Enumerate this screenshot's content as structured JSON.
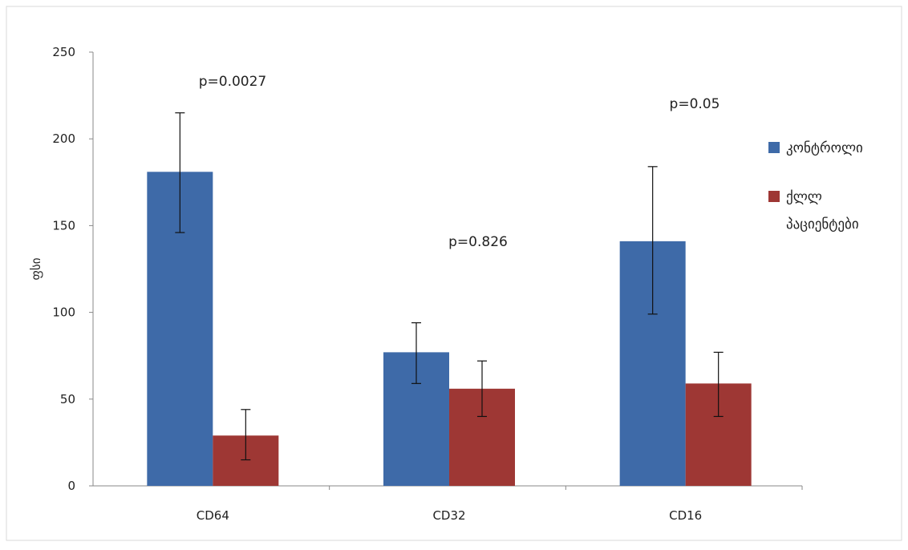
{
  "chart_data": {
    "type": "bar",
    "title": "",
    "xlabel": "",
    "ylabel": "ფსი",
    "ylim": [
      0,
      250
    ],
    "yticks": [
      0,
      50,
      100,
      150,
      200,
      250
    ],
    "grid": false,
    "legend_position": "right",
    "categories": [
      "CD64",
      "CD32",
      "CD16"
    ],
    "series": [
      {
        "name": "კონტროლი",
        "color": "#3E6AA8",
        "values": [
          181,
          77,
          141
        ],
        "error_low": [
          146,
          59,
          99
        ],
        "error_high": [
          215,
          94,
          184
        ]
      },
      {
        "name": "ქლლ პაციენტები",
        "name_lines": [
          "ქლლ",
          "პაციენტები"
        ],
        "color": "#9E3734",
        "values": [
          29,
          56,
          59
        ],
        "error_low": [
          15,
          40,
          40
        ],
        "error_high": [
          44,
          72,
          77
        ]
      }
    ],
    "annotations": [
      "p=0.0027",
      "p=0.826",
      "p=0.05"
    ]
  }
}
